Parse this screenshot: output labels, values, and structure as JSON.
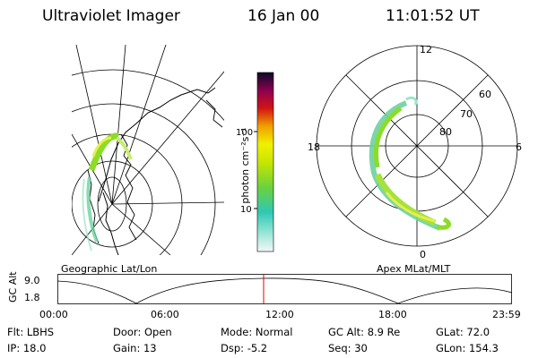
{
  "header": {
    "instrument": "Ultraviolet Imager",
    "date": "16 Jan 00",
    "time": "11:01:52 UT"
  },
  "colorbar": {
    "label": "photon cm⁻²s⁻¹",
    "ticks": [
      "100",
      "10"
    ]
  },
  "left_panel": {
    "caption": "Geographic Lat/Lon"
  },
  "right_panel": {
    "caption": "Apex MLat/MLT",
    "mlt_labels": [
      "12",
      "18",
      "6",
      "0"
    ],
    "lat_labels": [
      "60",
      "70",
      "80"
    ]
  },
  "timeline": {
    "axis_title": "GC Alt",
    "y_labels": [
      "9.0",
      "1.8"
    ],
    "x_labels": [
      "00:00",
      "06:00",
      "12:00",
      "18:00",
      "23:59"
    ],
    "current_time": "11:01:52"
  },
  "info": {
    "row1": [
      {
        "key": "Flt:",
        "value": "LBHS"
      },
      {
        "key": "Door:",
        "value": "Open"
      },
      {
        "key": "Mode:",
        "value": "Normal"
      },
      {
        "key": "GC Alt:",
        "value": "8.9 Re"
      },
      {
        "key": "GLat:",
        "value": "72.0"
      }
    ],
    "row2": [
      {
        "key": "IP:",
        "value": "18.0"
      },
      {
        "key": "Gain:",
        "value": "13"
      },
      {
        "key": "Dsp:",
        "value": "-5.2"
      },
      {
        "key": "Seq:",
        "value": "30"
      },
      {
        "key": "GLon:",
        "value": "154.3"
      }
    ]
  }
}
